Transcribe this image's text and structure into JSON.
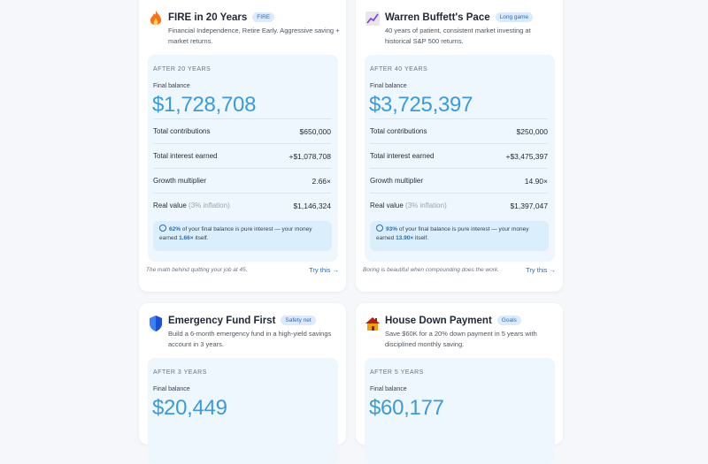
{
  "cards": [
    {
      "title": "FIRE in 20 Years",
      "badge": "FIRE",
      "description": "Financial Independence, Retire Early. Aggressive saving + market returns.",
      "period": "AFTER 20 YEARS",
      "balance_label": "Final balance",
      "balance": "$1,728,708",
      "rows": [
        {
          "label": "Total contributions",
          "value": "$650,000"
        },
        {
          "label": "Total interest earned",
          "value": "+$1,078,708"
        },
        {
          "label": "Growth multiplier",
          "value": "2.66×"
        },
        {
          "label": "Real value",
          "note": "(3% inflation)",
          "value": "$1,146,324"
        }
      ],
      "note": {
        "share": "62%",
        "text": "of your final balance is pure interest — your money earned",
        "multiplier": "1.66×",
        "end": "itself."
      },
      "footer": "The math behind quitting your job at 45.",
      "cta": "Try this →"
    },
    {
      "title": "Warren Buffett's Pace",
      "badge": "Long game",
      "description": "40 years of patient, consistent market investing at historical S&P 500 returns.",
      "period": "AFTER 40 YEARS",
      "balance_label": "Final balance",
      "balance": "$3,725,397",
      "rows": [
        {
          "label": "Total contributions",
          "value": "$250,000"
        },
        {
          "label": "Total interest earned",
          "value": "+$3,475,397"
        },
        {
          "label": "Growth multiplier",
          "value": "14.90×"
        },
        {
          "label": "Real value",
          "note": "(3% inflation)",
          "value": "$1,397,047"
        }
      ],
      "note": {
        "share": "93%",
        "text": "of your final balance is pure interest — your money earned",
        "multiplier": "13.90×",
        "end": "itself."
      },
      "footer": "Boring is beautiful when compounding does the work.",
      "cta": "Try this →"
    },
    {
      "title": "Emergency Fund First",
      "badge": "Safety net",
      "description": "Build a 6-month emergency fund in a high-yield savings account in 3 years.",
      "period": "AFTER 3 YEARS",
      "balance_label": "Final balance",
      "balance": "$20,449"
    },
    {
      "title": "House Down Payment",
      "badge": "Goals",
      "description": "Save $60K for a 20% down payment in 5 years with disciplined monthly saving.",
      "period": "AFTER 5 YEARS",
      "balance_label": "Final balance",
      "balance": "$60,177"
    }
  ]
}
